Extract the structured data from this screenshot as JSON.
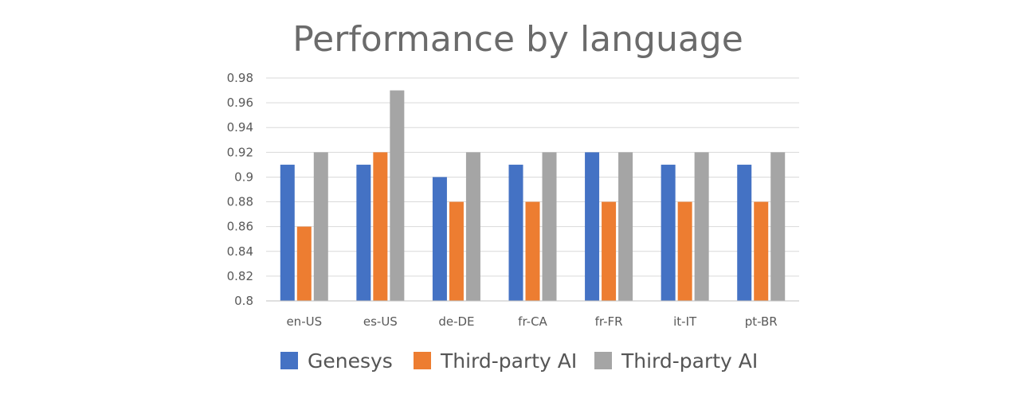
{
  "chart_data": {
    "type": "bar",
    "title": "Performance by language",
    "xlabel": "",
    "ylabel": "",
    "categories": [
      "en-US",
      "es-US",
      "de-DE",
      "fr-CA",
      "fr-FR",
      "it-IT",
      "pt-BR"
    ],
    "series": [
      {
        "name": "Genesys",
        "color": "#4472c4",
        "values": [
          0.91,
          0.91,
          0.9,
          0.91,
          0.92,
          0.91,
          0.91
        ]
      },
      {
        "name": "Third-party AI",
        "color": "#ed7d31",
        "values": [
          0.86,
          0.92,
          0.88,
          0.88,
          0.88,
          0.88,
          0.88
        ]
      },
      {
        "name": "Third-party AI",
        "color": "#a5a5a5",
        "values": [
          0.92,
          0.97,
          0.92,
          0.92,
          0.92,
          0.92,
          0.92
        ]
      }
    ],
    "ylim": [
      0.8,
      0.98
    ],
    "yticks": [
      "0.98",
      "0.96",
      "0.94",
      "0.92",
      "0.9",
      "0.88",
      "0.86",
      "0.84",
      "0.82",
      "0.8"
    ],
    "grid": true,
    "legend_position": "bottom"
  }
}
